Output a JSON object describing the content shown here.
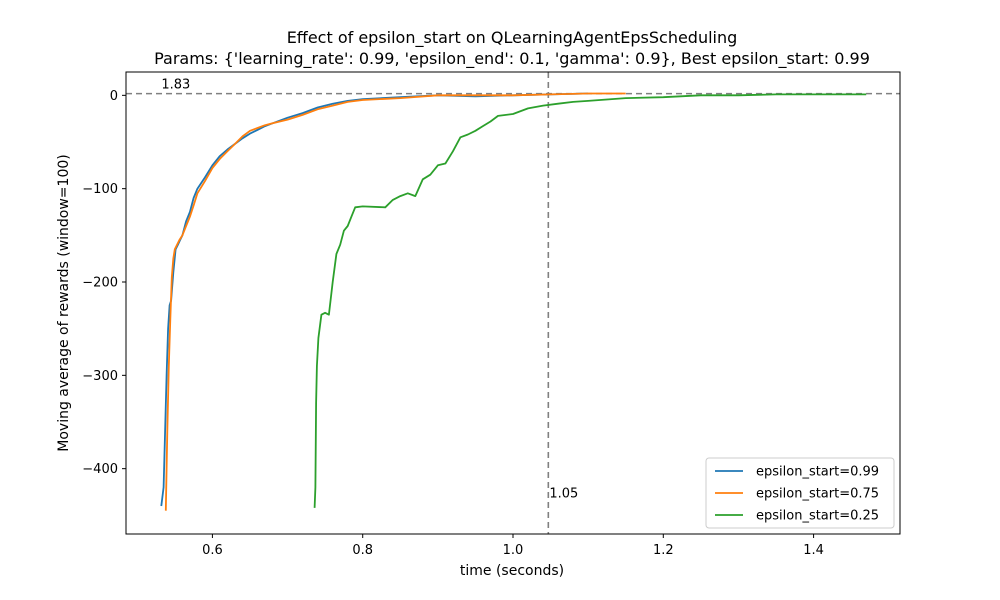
{
  "chart_data": {
    "type": "line",
    "title": "Effect of epsilon_start on QLearningAgentEpsScheduling",
    "subtitle": "Params: {'learning_rate': 0.99, 'epsilon_end': 0.1, 'gamma': 0.9}, Best epsilon_start: 0.99",
    "xlabel": "time (seconds)",
    "ylabel": "Moving average of rewards (window=100)",
    "xlim": [
      0.485,
      1.515
    ],
    "ylim": [
      -470,
      25
    ],
    "x_ticks": [
      0.6,
      0.8,
      1.0,
      1.2,
      1.4
    ],
    "x_tick_labels": [
      "0.6",
      "0.8",
      "1.0",
      "1.2",
      "1.4"
    ],
    "y_ticks": [
      0,
      -100,
      -200,
      -300,
      -400
    ],
    "y_tick_labels": [
      "0",
      "−100",
      "−200",
      "−300",
      "−400"
    ],
    "grid": false,
    "legend_position": "bottom-right",
    "series": [
      {
        "name": "epsilon_start=0.99",
        "color": "#1f77b4",
        "x": [
          0.532,
          0.535,
          0.537,
          0.539,
          0.541,
          0.543,
          0.545,
          0.548,
          0.551,
          0.554,
          0.557,
          0.56,
          0.565,
          0.57,
          0.575,
          0.58,
          0.59,
          0.6,
          0.61,
          0.62,
          0.63,
          0.64,
          0.65,
          0.66,
          0.67,
          0.68,
          0.7,
          0.72,
          0.74,
          0.76,
          0.78,
          0.8,
          0.85,
          0.9,
          0.95,
          1.0,
          1.05,
          1.1
        ],
        "y": [
          -440,
          -420,
          -360,
          -300,
          -250,
          -225,
          -220,
          -190,
          -165,
          -160,
          -155,
          -150,
          -135,
          -125,
          -110,
          -100,
          -88,
          -75,
          -65,
          -58,
          -52,
          -46,
          -41,
          -37,
          -33,
          -30,
          -24,
          -19,
          -13,
          -9,
          -6,
          -4,
          -2,
          0,
          -1,
          0,
          1,
          2
        ]
      },
      {
        "name": "epsilon_start=0.75",
        "color": "#ff7f0e",
        "x": [
          0.538,
          0.54,
          0.542,
          0.544,
          0.546,
          0.548,
          0.55,
          0.553,
          0.556,
          0.56,
          0.565,
          0.57,
          0.575,
          0.58,
          0.59,
          0.6,
          0.61,
          0.62,
          0.63,
          0.64,
          0.65,
          0.66,
          0.67,
          0.68,
          0.7,
          0.72,
          0.74,
          0.76,
          0.78,
          0.8,
          0.85,
          0.9,
          0.95,
          1.0,
          1.05,
          1.1,
          1.15
        ],
        "y": [
          -445,
          -360,
          -290,
          -240,
          -195,
          -175,
          -165,
          -160,
          -155,
          -150,
          -140,
          -130,
          -118,
          -105,
          -92,
          -78,
          -68,
          -60,
          -52,
          -44,
          -38,
          -35,
          -32,
          -30,
          -26,
          -21,
          -15,
          -11,
          -7,
          -5,
          -3,
          0,
          0,
          0,
          1,
          2,
          2
        ]
      },
      {
        "name": "epsilon_start=0.25",
        "color": "#2ca02c",
        "x": [
          0.736,
          0.737,
          0.738,
          0.739,
          0.741,
          0.745,
          0.75,
          0.755,
          0.76,
          0.765,
          0.77,
          0.775,
          0.78,
          0.785,
          0.79,
          0.8,
          0.83,
          0.84,
          0.85,
          0.86,
          0.87,
          0.88,
          0.89,
          0.9,
          0.91,
          0.92,
          0.93,
          0.94,
          0.95,
          0.96,
          0.97,
          0.98,
          1.0,
          1.02,
          1.04,
          1.06,
          1.08,
          1.1,
          1.15,
          1.2,
          1.25,
          1.3,
          1.35,
          1.4,
          1.45,
          1.47
        ],
        "y": [
          -442,
          -420,
          -330,
          -290,
          -260,
          -235,
          -233,
          -235,
          -200,
          -170,
          -160,
          -145,
          -140,
          -130,
          -120,
          -119,
          -120,
          -112,
          -108,
          -105,
          -108,
          -90,
          -85,
          -75,
          -73,
          -60,
          -45,
          -42,
          -38,
          -33,
          -28,
          -22,
          -20,
          -14,
          -11,
          -9,
          -7,
          -6,
          -3,
          -2,
          0,
          0,
          1,
          1,
          1,
          1
        ]
      }
    ],
    "reference_lines": [
      {
        "orientation": "horizontal",
        "value": 1.83,
        "label": "1.83",
        "color": "#808080"
      },
      {
        "orientation": "vertical",
        "value": 1.047,
        "label": "1.05",
        "color": "#808080"
      }
    ]
  }
}
